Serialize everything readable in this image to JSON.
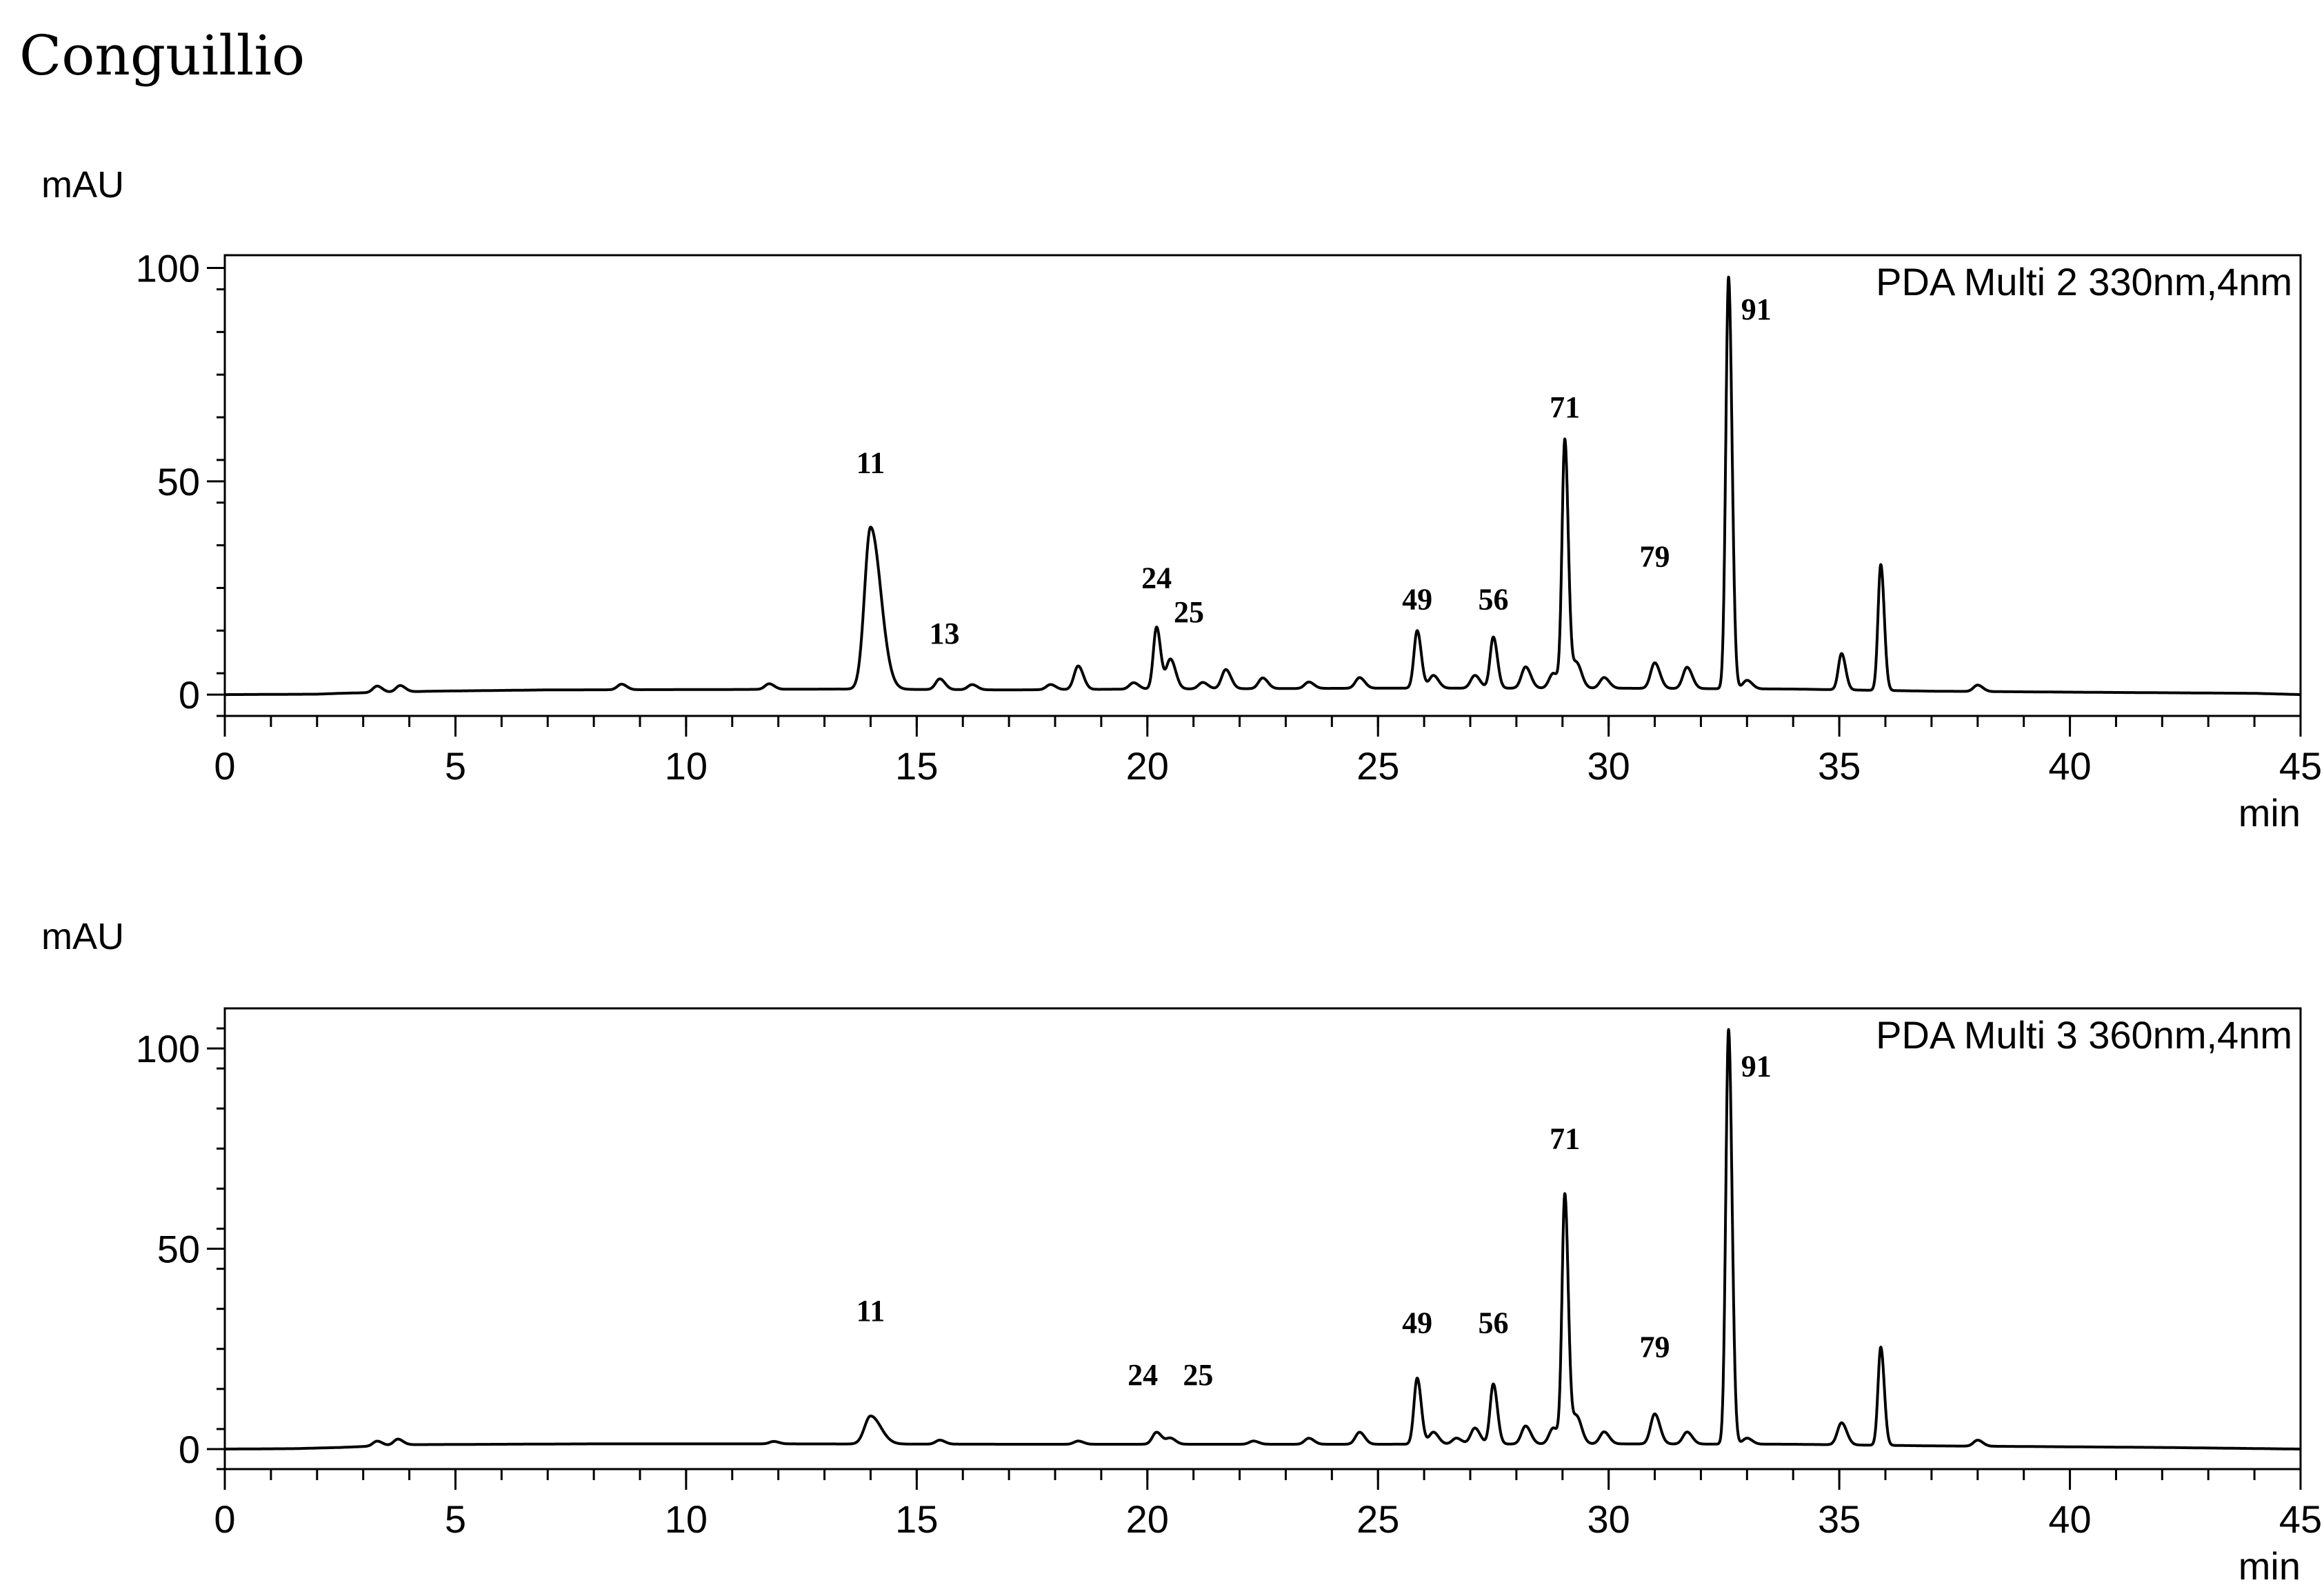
{
  "title": "Conguillio",
  "chart_data": [
    {
      "type": "line",
      "legend": "PDA Multi 2 330nm,4nm",
      "ylabel": "mAU",
      "xlabel": "min",
      "xlim": [
        0,
        45
      ],
      "ylim": [
        -5,
        103
      ],
      "xticks": [
        0,
        5,
        10,
        15,
        20,
        25,
        30,
        35,
        40,
        45
      ],
      "yticks": [
        0,
        50,
        100
      ],
      "baseline": [
        {
          "x": 0,
          "y": 0
        },
        {
          "x": 2,
          "y": 0.1
        },
        {
          "x": 2.5,
          "y": 0.3
        },
        {
          "x": 4.5,
          "y": 0.8
        },
        {
          "x": 7,
          "y": 1.1
        },
        {
          "x": 11,
          "y": 1.2
        },
        {
          "x": 13.3,
          "y": 1.3
        },
        {
          "x": 17,
          "y": 1.1
        },
        {
          "x": 20,
          "y": 1.3
        },
        {
          "x": 25,
          "y": 1.5
        },
        {
          "x": 30,
          "y": 1.5
        },
        {
          "x": 34,
          "y": 1.3
        },
        {
          "x": 37,
          "y": 0.8
        },
        {
          "x": 41,
          "y": 0.5
        },
        {
          "x": 44,
          "y": 0.3
        },
        {
          "x": 45,
          "y": 0
        }
      ],
      "peaks": [
        {
          "x": 3.3,
          "h": 1.5
        },
        {
          "x": 3.8,
          "h": 1.5
        },
        {
          "x": 8.6,
          "h": 1.3
        },
        {
          "x": 11.8,
          "h": 1.3
        },
        {
          "x": 14.0,
          "h": 38
        },
        {
          "x": 15.5,
          "h": 2.5
        },
        {
          "x": 16.2,
          "h": 1.2
        },
        {
          "x": 17.9,
          "h": 1.2
        },
        {
          "x": 18.5,
          "h": 5.5
        },
        {
          "x": 19.7,
          "h": 1.5
        },
        {
          "x": 20.2,
          "h": 14.5
        },
        {
          "x": 20.5,
          "h": 7
        },
        {
          "x": 21.2,
          "h": 1.5
        },
        {
          "x": 21.7,
          "h": 4.5
        },
        {
          "x": 22.5,
          "h": 2.5
        },
        {
          "x": 23.5,
          "h": 1.5
        },
        {
          "x": 24.6,
          "h": 2.5
        },
        {
          "x": 25.85,
          "h": 13.5
        },
        {
          "x": 26.2,
          "h": 3
        },
        {
          "x": 27.1,
          "h": 3
        },
        {
          "x": 27.5,
          "h": 12
        },
        {
          "x": 28.2,
          "h": 5
        },
        {
          "x": 28.8,
          "h": 3.5
        },
        {
          "x": 29.05,
          "h": 58
        },
        {
          "x": 29.3,
          "h": 6
        },
        {
          "x": 29.9,
          "h": 2.5
        },
        {
          "x": 31.0,
          "h": 6
        },
        {
          "x": 31.7,
          "h": 5
        },
        {
          "x": 32.6,
          "h": 96.5
        },
        {
          "x": 33.0,
          "h": 2
        },
        {
          "x": 35.05,
          "h": 8.5
        },
        {
          "x": 35.9,
          "h": 29.5
        },
        {
          "x": 38.0,
          "h": 1.5
        }
      ],
      "annotations": [
        {
          "text": "11",
          "x": 14.0,
          "y": 52
        },
        {
          "text": "13",
          "x": 15.6,
          "y": 12
        },
        {
          "text": "24",
          "x": 20.2,
          "y": 25
        },
        {
          "text": "25",
          "x": 20.9,
          "y": 17
        },
        {
          "text": "49",
          "x": 25.85,
          "y": 20
        },
        {
          "text": "56",
          "x": 27.5,
          "y": 20
        },
        {
          "text": "71",
          "x": 29.05,
          "y": 65
        },
        {
          "text": "79",
          "x": 31.0,
          "y": 30
        },
        {
          "text": "91",
          "x": 33.2,
          "y": 88
        }
      ]
    },
    {
      "type": "line",
      "legend": "PDA Multi 3 360nm,4nm",
      "ylabel": "mAU",
      "xlabel": "min",
      "xlim": [
        0,
        45
      ],
      "ylim": [
        -5,
        110
      ],
      "xticks": [
        0,
        5,
        10,
        15,
        20,
        25,
        30,
        35,
        40,
        45
      ],
      "yticks": [
        0,
        50,
        100
      ],
      "baseline": [
        {
          "x": 0,
          "y": 0
        },
        {
          "x": 1.5,
          "y": 0.1
        },
        {
          "x": 2.5,
          "y": 0.4
        },
        {
          "x": 4,
          "y": 1.1
        },
        {
          "x": 8,
          "y": 1.3
        },
        {
          "x": 12,
          "y": 1.3
        },
        {
          "x": 17,
          "y": 1.2
        },
        {
          "x": 22,
          "y": 1.2
        },
        {
          "x": 25,
          "y": 1.2
        },
        {
          "x": 30,
          "y": 1.3
        },
        {
          "x": 34,
          "y": 1.2
        },
        {
          "x": 37,
          "y": 0.8
        },
        {
          "x": 42,
          "y": 0.4
        },
        {
          "x": 45,
          "y": 0
        }
      ],
      "peaks": [
        {
          "x": 3.3,
          "h": 1.2
        },
        {
          "x": 3.75,
          "h": 1.5
        },
        {
          "x": 11.9,
          "h": 0.6
        },
        {
          "x": 14.0,
          "h": 7
        },
        {
          "x": 15.5,
          "h": 1
        },
        {
          "x": 18.5,
          "h": 0.8
        },
        {
          "x": 20.2,
          "h": 3
        },
        {
          "x": 20.5,
          "h": 1.5
        },
        {
          "x": 22.3,
          "h": 0.8
        },
        {
          "x": 23.5,
          "h": 1.5
        },
        {
          "x": 24.6,
          "h": 3
        },
        {
          "x": 25.85,
          "h": 16.5
        },
        {
          "x": 26.2,
          "h": 3
        },
        {
          "x": 26.7,
          "h": 1.5
        },
        {
          "x": 27.1,
          "h": 4
        },
        {
          "x": 27.5,
          "h": 15
        },
        {
          "x": 28.2,
          "h": 4.5
        },
        {
          "x": 28.8,
          "h": 4
        },
        {
          "x": 29.05,
          "h": 62
        },
        {
          "x": 29.3,
          "h": 7
        },
        {
          "x": 29.9,
          "h": 3
        },
        {
          "x": 31.0,
          "h": 7.5
        },
        {
          "x": 31.7,
          "h": 3
        },
        {
          "x": 32.6,
          "h": 103.5
        },
        {
          "x": 33.0,
          "h": 1.5
        },
        {
          "x": 35.05,
          "h": 5.5
        },
        {
          "x": 35.9,
          "h": 24.5
        },
        {
          "x": 38.0,
          "h": 1.5
        }
      ],
      "annotations": [
        {
          "text": "11",
          "x": 14.0,
          "y": 32
        },
        {
          "text": "24",
          "x": 19.9,
          "y": 16
        },
        {
          "text": "25",
          "x": 21.1,
          "y": 16
        },
        {
          "text": "49",
          "x": 25.85,
          "y": 29
        },
        {
          "text": "56",
          "x": 27.5,
          "y": 29
        },
        {
          "text": "71",
          "x": 29.05,
          "y": 75
        },
        {
          "text": "79",
          "x": 31.0,
          "y": 23
        },
        {
          "text": "91",
          "x": 33.2,
          "y": 93
        }
      ]
    }
  ]
}
